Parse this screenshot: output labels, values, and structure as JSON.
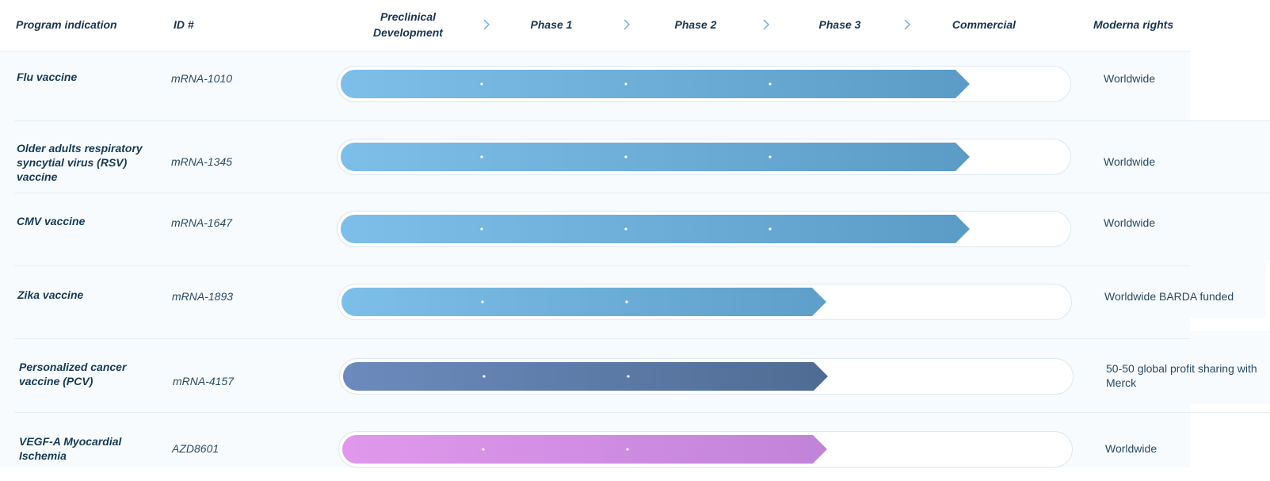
{
  "header": {
    "program_indication": "Program indication",
    "id": "ID #",
    "moderna_rights": "Moderna rights"
  },
  "chart_data": {
    "type": "bar",
    "stages": [
      "Preclinical\nDevelopment",
      "Phase 1",
      "Phase 2",
      "Phase 3",
      "Commercial"
    ],
    "programs": [
      {
        "indication": "Flu vaccine",
        "id": "mRNA-1010",
        "stage_reached": 4,
        "rights": "Worldwide",
        "color_start": "#7dbfe9",
        "color_end": "#5a9cc6"
      },
      {
        "indication": "Older adults respiratory syncytial virus (RSV) vaccine",
        "id": "mRNA-1345",
        "stage_reached": 4,
        "rights": "Worldwide",
        "color_start": "#7dbfe9",
        "color_end": "#5a9cc6"
      },
      {
        "indication": "CMV vaccine",
        "id": "mRNA-1647",
        "stage_reached": 4,
        "rights": "Worldwide",
        "color_start": "#7dbfe9",
        "color_end": "#5a9cc6"
      },
      {
        "indication": "Zika vaccine",
        "id": "mRNA-1893",
        "stage_reached": 3,
        "rights": "Worldwide BARDA funded",
        "color_start": "#7dbfe9",
        "color_end": "#5d9fc9"
      },
      {
        "indication": "Personalized cancer vaccine (PCV)",
        "id": "mRNA-4157",
        "stage_reached": 3,
        "rights": "50-50 global profit sharing with Merck",
        "color_start": "#6c8bbd",
        "color_end": "#4e6c93"
      },
      {
        "indication": "VEGF-A Myocardial Ischemia",
        "id": "AZD8601",
        "stage_reached": 3,
        "rights": "Worldwide",
        "color_start": "#e098ec",
        "color_end": "#c183d9"
      }
    ]
  }
}
